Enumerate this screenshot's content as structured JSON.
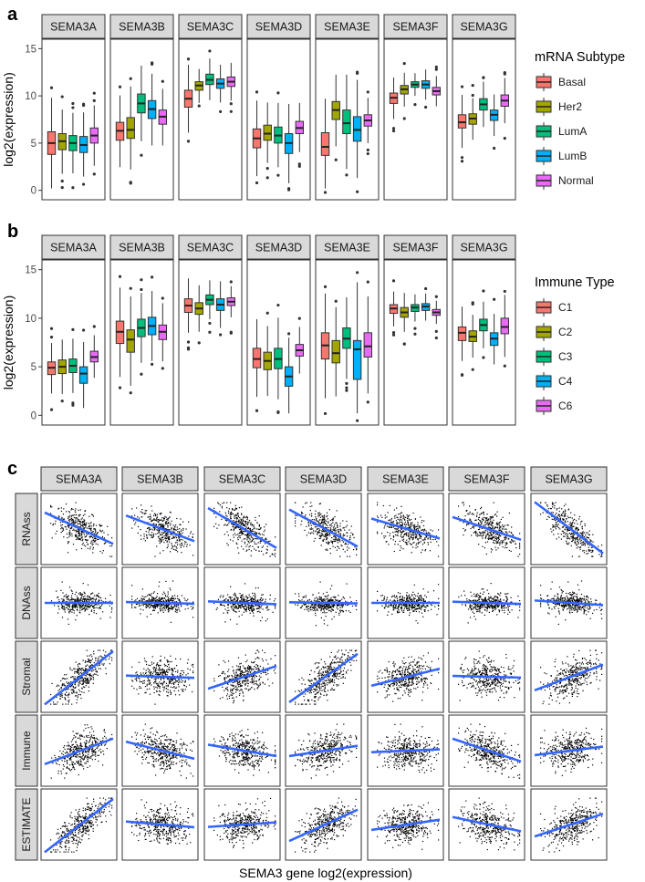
{
  "colors": {
    "Basal": "#F8766D",
    "Her2": "#A3A500",
    "LumA": "#00BF7D",
    "LumB": "#00B0F6",
    "Normal": "#E76BF3",
    "C1": "#F8766D",
    "C2": "#A3A500",
    "C3": "#00BF7D",
    "C4": "#00B0F6",
    "C6": "#E76BF3",
    "fit_line": "#3366FF"
  },
  "chart_data": [
    {
      "panel_label": "a",
      "type": "box",
      "ylabel": "log2(expression)",
      "ylim": [
        -1,
        16
      ],
      "yticks": [
        "0",
        "5",
        "10",
        "15"
      ],
      "genes": [
        "SEMA3A",
        "SEMA3B",
        "SEMA3C",
        "SEMA3D",
        "SEMA3E",
        "SEMA3F",
        "SEMA3G"
      ],
      "legend": {
        "title": "mRNA Subtype",
        "position": "right",
        "entries": [
          "Basal",
          "Her2",
          "LumA",
          "LumB",
          "Normal"
        ]
      },
      "boxes": [
        [
          [
            3.8,
            5.0,
            6.2
          ],
          [
            4.3,
            5.2,
            6.0
          ],
          [
            4.2,
            5.0,
            5.8
          ],
          [
            4.0,
            4.8,
            5.7
          ],
          [
            5.0,
            5.8,
            6.6
          ]
        ],
        [
          [
            5.3,
            6.3,
            7.2
          ],
          [
            5.5,
            6.4,
            7.7
          ],
          [
            8.2,
            9.2,
            10.2
          ],
          [
            7.6,
            8.6,
            9.5
          ],
          [
            7.0,
            7.8,
            8.5
          ]
        ],
        [
          [
            8.8,
            9.7,
            10.6
          ],
          [
            10.6,
            11.1,
            11.5
          ],
          [
            11.2,
            11.7,
            12.3
          ],
          [
            10.8,
            11.3,
            11.8
          ],
          [
            11.0,
            11.5,
            12.0
          ]
        ],
        [
          [
            4.5,
            5.5,
            6.5
          ],
          [
            5.3,
            6.0,
            6.9
          ],
          [
            5.0,
            5.8,
            6.7
          ],
          [
            3.9,
            5.0,
            6.0
          ],
          [
            6.0,
            6.6,
            7.3
          ]
        ],
        [
          [
            3.7,
            4.6,
            6.1
          ],
          [
            7.5,
            8.5,
            9.4
          ],
          [
            6.0,
            7.1,
            8.5
          ],
          [
            5.2,
            6.4,
            7.8
          ],
          [
            6.8,
            7.4,
            8.0
          ]
        ],
        [
          [
            9.2,
            9.8,
            10.3
          ],
          [
            10.2,
            10.7,
            11.1
          ],
          [
            10.9,
            11.2,
            11.5
          ],
          [
            10.8,
            11.2,
            11.6
          ],
          [
            10.1,
            10.5,
            10.9
          ]
        ],
        [
          [
            6.6,
            7.2,
            8.0
          ],
          [
            7.0,
            7.6,
            8.1
          ],
          [
            8.5,
            9.1,
            9.7
          ],
          [
            7.4,
            8.0,
            8.5
          ],
          [
            8.9,
            9.5,
            10.1
          ]
        ]
      ]
    },
    {
      "panel_label": "b",
      "type": "box",
      "ylabel": "log2(expression)",
      "ylim": [
        -1,
        16
      ],
      "yticks": [
        "0",
        "5",
        "10",
        "15"
      ],
      "genes": [
        "SEMA3A",
        "SEMA3B",
        "SEMA3C",
        "SEMA3D",
        "SEMA3E",
        "SEMA3F",
        "SEMA3G"
      ],
      "legend": {
        "title": "Immune Type",
        "position": "right",
        "entries": [
          "C1",
          "C2",
          "C3",
          "C4",
          "C6"
        ]
      },
      "boxes": [
        [
          [
            4.2,
            4.9,
            5.5
          ],
          [
            4.3,
            5.0,
            5.7
          ],
          [
            4.4,
            5.1,
            5.8
          ],
          [
            3.3,
            4.3,
            5.0
          ],
          [
            5.5,
            6.0,
            6.6
          ]
        ],
        [
          [
            7.4,
            8.6,
            9.7
          ],
          [
            6.5,
            7.8,
            8.8
          ],
          [
            8.1,
            9.0,
            9.9
          ],
          [
            8.3,
            9.2,
            10.1
          ],
          [
            7.8,
            8.6,
            9.3
          ]
        ],
        [
          [
            10.6,
            11.3,
            12.0
          ],
          [
            10.4,
            11.0,
            11.6
          ],
          [
            11.4,
            11.9,
            12.4
          ],
          [
            10.8,
            11.4,
            12.0
          ],
          [
            11.3,
            11.7,
            12.1
          ]
        ],
        [
          [
            4.9,
            5.8,
            6.9
          ],
          [
            4.7,
            5.6,
            6.5
          ],
          [
            4.8,
            5.8,
            6.9
          ],
          [
            3.0,
            4.0,
            5.0
          ],
          [
            6.1,
            6.7,
            7.3
          ]
        ],
        [
          [
            5.8,
            7.2,
            8.5
          ],
          [
            5.4,
            6.4,
            7.7
          ],
          [
            6.9,
            7.9,
            9.0
          ],
          [
            3.7,
            6.8,
            7.7
          ],
          [
            6.0,
            7.1,
            8.5
          ]
        ],
        [
          [
            10.5,
            11.0,
            11.4
          ],
          [
            10.1,
            10.6,
            11.1
          ],
          [
            10.7,
            11.1,
            11.4
          ],
          [
            10.8,
            11.2,
            11.5
          ],
          [
            10.3,
            10.6,
            10.9
          ]
        ],
        [
          [
            7.7,
            8.5,
            9.1
          ],
          [
            7.6,
            8.1,
            8.7
          ],
          [
            8.7,
            9.3,
            9.9
          ],
          [
            7.2,
            7.9,
            8.5
          ],
          [
            8.4,
            9.1,
            10.0
          ]
        ]
      ]
    },
    {
      "panel_label": "c",
      "type": "scatter",
      "xlabel": "SEMA3 gene log2(expression)",
      "genes": [
        "SEMA3A",
        "SEMA3B",
        "SEMA3C",
        "SEMA3D",
        "SEMA3E",
        "SEMA3F",
        "SEMA3G"
      ],
      "rows": [
        "RNAss",
        "DNAss",
        "Stromal",
        "Immune",
        "ESTIMATE"
      ],
      "slopes": [
        [
          -0.55,
          -0.45,
          -0.7,
          -0.65,
          -0.35,
          -0.4,
          -0.9
        ],
        [
          0.0,
          -0.03,
          -0.05,
          -0.02,
          0.0,
          -0.04,
          -0.08
        ],
        [
          0.95,
          -0.04,
          0.4,
          0.85,
          0.3,
          -0.03,
          0.45
        ],
        [
          0.45,
          -0.3,
          -0.2,
          0.18,
          0.05,
          -0.4,
          0.15
        ],
        [
          0.95,
          -0.1,
          0.08,
          0.55,
          0.18,
          -0.25,
          0.4
        ]
      ]
    }
  ]
}
